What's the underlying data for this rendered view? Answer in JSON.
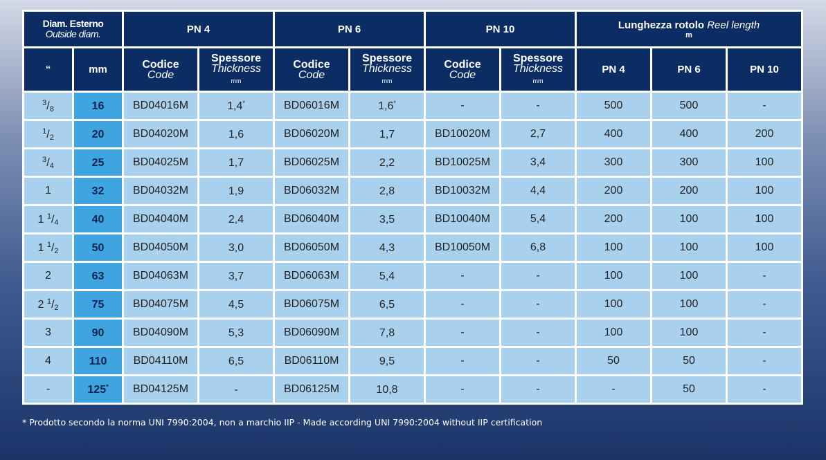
{
  "header": {
    "diam_it": "Diam. Esterno",
    "diam_en": "Outside diam.",
    "groups": [
      "PN 4",
      "PN 6",
      "PN 10"
    ],
    "reel_it": "Lunghezza rotolo",
    "reel_en": "Reel length",
    "reel_unit": "m",
    "inch_col": "“",
    "mm_col": "mm",
    "code_it": "Codice",
    "code_en": "Code",
    "thick_it": "Spessore",
    "thick_en": "Thickness",
    "thick_unit": "mm",
    "reel_cols": [
      "PN 4",
      "PN 6",
      "PN 10"
    ]
  },
  "rows": [
    {
      "inch_whole": "",
      "inch_num": "3",
      "inch_den": "8",
      "mm": "16",
      "mm_mark": "",
      "pn4_code": "BD04016M",
      "pn4_thick": "1,4",
      "pn4_mark": "*",
      "pn6_code": "BD06016M",
      "pn6_thick": "1,6",
      "pn6_mark": "*",
      "pn10_code": "-",
      "pn10_thick": "-",
      "reel_pn4": "500",
      "reel_pn6": "500",
      "reel_pn10": "-"
    },
    {
      "inch_whole": "",
      "inch_num": "1",
      "inch_den": "2",
      "mm": "20",
      "mm_mark": "",
      "pn4_code": "BD04020M",
      "pn4_thick": "1,6",
      "pn4_mark": "",
      "pn6_code": "BD06020M",
      "pn6_thick": "1,7",
      "pn6_mark": "",
      "pn10_code": "BD10020M",
      "pn10_thick": "2,7",
      "reel_pn4": "400",
      "reel_pn6": "400",
      "reel_pn10": "200"
    },
    {
      "inch_whole": "",
      "inch_num": "3",
      "inch_den": "4",
      "mm": "25",
      "mm_mark": "",
      "pn4_code": "BD04025M",
      "pn4_thick": "1,7",
      "pn4_mark": "",
      "pn6_code": "BD06025M",
      "pn6_thick": "2,2",
      "pn6_mark": "",
      "pn10_code": "BD10025M",
      "pn10_thick": "3,4",
      "reel_pn4": "300",
      "reel_pn6": "300",
      "reel_pn10": "100"
    },
    {
      "inch_whole": "1",
      "inch_num": "",
      "inch_den": "",
      "mm": "32",
      "mm_mark": "",
      "pn4_code": "BD04032M",
      "pn4_thick": "1,9",
      "pn4_mark": "",
      "pn6_code": "BD06032M",
      "pn6_thick": "2,8",
      "pn6_mark": "",
      "pn10_code": "BD10032M",
      "pn10_thick": "4,4",
      "reel_pn4": "200",
      "reel_pn6": "200",
      "reel_pn10": "100"
    },
    {
      "inch_whole": "1",
      "inch_num": "1",
      "inch_den": "4",
      "mm": "40",
      "mm_mark": "",
      "pn4_code": "BD04040M",
      "pn4_thick": "2,4",
      "pn4_mark": "",
      "pn6_code": "BD06040M",
      "pn6_thick": "3,5",
      "pn6_mark": "",
      "pn10_code": "BD10040M",
      "pn10_thick": "5,4",
      "reel_pn4": "200",
      "reel_pn6": "100",
      "reel_pn10": "100"
    },
    {
      "inch_whole": "1",
      "inch_num": "1",
      "inch_den": "2",
      "mm": "50",
      "mm_mark": "",
      "pn4_code": "BD04050M",
      "pn4_thick": "3,0",
      "pn4_mark": "",
      "pn6_code": "BD06050M",
      "pn6_thick": "4,3",
      "pn6_mark": "",
      "pn10_code": "BD10050M",
      "pn10_thick": "6,8",
      "reel_pn4": "100",
      "reel_pn6": "100",
      "reel_pn10": "100"
    },
    {
      "inch_whole": "2",
      "inch_num": "",
      "inch_den": "",
      "mm": "63",
      "mm_mark": "",
      "pn4_code": "BD04063M",
      "pn4_thick": "3,7",
      "pn4_mark": "",
      "pn6_code": "BD06063M",
      "pn6_thick": "5,4",
      "pn6_mark": "",
      "pn10_code": "-",
      "pn10_thick": "-",
      "reel_pn4": "100",
      "reel_pn6": "100",
      "reel_pn10": "-"
    },
    {
      "inch_whole": "2",
      "inch_num": "1",
      "inch_den": "2",
      "mm": "75",
      "mm_mark": "",
      "pn4_code": "BD04075M",
      "pn4_thick": "4,5",
      "pn4_mark": "",
      "pn6_code": "BD06075M",
      "pn6_thick": "6,5",
      "pn6_mark": "",
      "pn10_code": "-",
      "pn10_thick": "-",
      "reel_pn4": "100",
      "reel_pn6": "100",
      "reel_pn10": "-"
    },
    {
      "inch_whole": "3",
      "inch_num": "",
      "inch_den": "",
      "mm": "90",
      "mm_mark": "",
      "pn4_code": "BD04090M",
      "pn4_thick": "5,3",
      "pn4_mark": "",
      "pn6_code": "BD06090M",
      "pn6_thick": "7,8",
      "pn6_mark": "",
      "pn10_code": "-",
      "pn10_thick": "-",
      "reel_pn4": "100",
      "reel_pn6": "100",
      "reel_pn10": "-"
    },
    {
      "inch_whole": "4",
      "inch_num": "",
      "inch_den": "",
      "mm": "110",
      "mm_mark": "",
      "pn4_code": "BD04110M",
      "pn4_thick": "6,5",
      "pn4_mark": "",
      "pn6_code": "BD06110M",
      "pn6_thick": "9,5",
      "pn6_mark": "",
      "pn10_code": "-",
      "pn10_thick": "-",
      "reel_pn4": "50",
      "reel_pn6": "50",
      "reel_pn10": "-"
    },
    {
      "inch_whole": "-",
      "inch_num": "",
      "inch_den": "",
      "mm": "125",
      "mm_mark": "*",
      "pn4_code": "BD04125M",
      "pn4_thick": "-",
      "pn4_mark": "",
      "pn6_code": "BD06125M",
      "pn6_thick": "10,8",
      "pn6_mark": "",
      "pn10_code": "-",
      "pn10_thick": "-",
      "reel_pn4": "-",
      "reel_pn6": "50",
      "reel_pn10": "-"
    }
  ],
  "footnote": "* Prodotto secondo la norma UNI 7990:2004, non a marchio IIP - Made according UNI 7990:2004 without IIP certification",
  "colors": {
    "header_bg": "#0c2d64",
    "cell_bg": "#a9d1ee",
    "mm_bg": "#3ea5e0",
    "grid": "#ffffff"
  }
}
